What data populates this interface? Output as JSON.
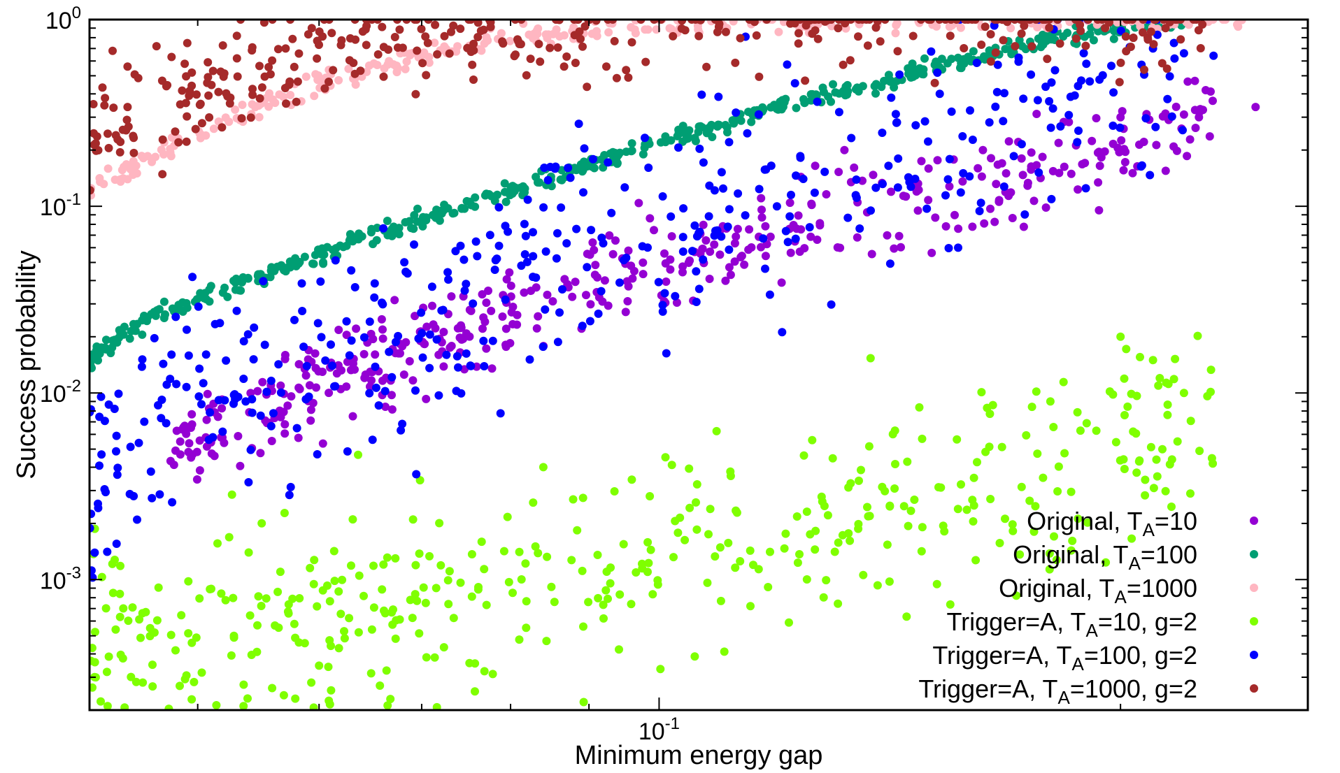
{
  "chart_data": {
    "type": "scatter",
    "title": "",
    "xlabel": "Minimum energy gap",
    "ylabel": "Success probability",
    "xscale": "log",
    "yscale": "log",
    "xlim": [
      0.0425,
      0.265
    ],
    "ylim": [
      0.0002,
      1.0
    ],
    "grid": false,
    "legend_position": "bottom-right",
    "x_ticks": [
      {
        "base": "10",
        "exp": "-1"
      }
    ],
    "y_ticks": [
      {
        "base": "10",
        "exp": "0"
      },
      {
        "base": "10",
        "exp": "-1"
      },
      {
        "base": "10",
        "exp": "-2"
      },
      {
        "base": "10",
        "exp": "-3"
      }
    ],
    "series": [
      {
        "name": "Original, T_A=10",
        "label_main": "Original, T",
        "label_sub": "A",
        "label_rest": "=10",
        "color": "#9400d3",
        "trend": [
          [
            0.048,
            0.0045
          ],
          [
            0.055,
            0.008
          ],
          [
            0.065,
            0.015
          ],
          [
            0.08,
            0.028
          ],
          [
            0.1,
            0.05
          ],
          [
            0.12,
            0.075
          ],
          [
            0.15,
            0.11
          ],
          [
            0.18,
            0.16
          ],
          [
            0.21,
            0.24
          ],
          [
            0.23,
            0.32
          ]
        ],
        "scatter_decades": 0.18,
        "count": 450,
        "points": [
          [
            0.2,
            0.3
          ],
          [
            0.215,
            0.29
          ],
          [
            0.22,
            0.31
          ],
          [
            0.225,
            0.3
          ],
          [
            0.245,
            0.34
          ]
        ]
      },
      {
        "name": "Original, T_A=100",
        "label_main": "Original, T",
        "label_sub": "A",
        "label_rest": "=100",
        "color": "#009e73",
        "trend": [
          [
            0.0425,
            0.015
          ],
          [
            0.046,
            0.025
          ],
          [
            0.052,
            0.035
          ],
          [
            0.06,
            0.055
          ],
          [
            0.07,
            0.085
          ],
          [
            0.08,
            0.12
          ],
          [
            0.1,
            0.22
          ],
          [
            0.12,
            0.34
          ],
          [
            0.15,
            0.55
          ],
          [
            0.18,
            0.8
          ],
          [
            0.205,
            0.95
          ],
          [
            0.22,
            0.99
          ]
        ],
        "scatter_decades": 0.035,
        "count": 500,
        "points": [
          [
            0.0425,
            0.015
          ],
          [
            0.0435,
            0.0175
          ],
          [
            0.046,
            0.0205
          ]
        ]
      },
      {
        "name": "Original, T_A=1000",
        "label_main": "Original, T",
        "label_sub": "A",
        "label_rest": "=1000",
        "color": "#ffb6c1",
        "trend": [
          [
            0.0425,
            0.12
          ],
          [
            0.046,
            0.17
          ],
          [
            0.052,
            0.28
          ],
          [
            0.06,
            0.45
          ],
          [
            0.07,
            0.65
          ],
          [
            0.08,
            0.8
          ],
          [
            0.1,
            0.93
          ],
          [
            0.15,
            0.99
          ],
          [
            0.24,
            1.0
          ]
        ],
        "scatter_decades": 0.04,
        "count": 300,
        "points": [
          [
            0.24,
            0.995
          ]
        ]
      },
      {
        "name": "Trigger=A, T_A=10, g=2",
        "label_main": "Trigger=A, T",
        "label_sub": "A",
        "label_rest": "=10, g=2",
        "color": "#7fff00",
        "trend": [
          [
            0.0425,
            0.0004
          ],
          [
            0.06,
            0.0006
          ],
          [
            0.08,
            0.0009
          ],
          [
            0.1,
            0.0013
          ],
          [
            0.13,
            0.0022
          ],
          [
            0.16,
            0.003
          ],
          [
            0.2,
            0.005
          ],
          [
            0.23,
            0.008
          ]
        ],
        "scatter_decades": 0.42,
        "count": 450,
        "points": [
          [
            0.2,
            0.02
          ],
          [
            0.21,
            0.015
          ],
          [
            0.22,
            0.01
          ],
          [
            0.18,
            0.009
          ]
        ]
      },
      {
        "name": "Trigger=A, T_A=100, g=2",
        "label_main": "Trigger=A, T",
        "label_sub": "A",
        "label_rest": "=100, g=2",
        "color": "#0000ff",
        "trend": [
          [
            0.0425,
            0.004
          ],
          [
            0.05,
            0.009
          ],
          [
            0.06,
            0.015
          ],
          [
            0.07,
            0.025
          ],
          [
            0.08,
            0.04
          ],
          [
            0.1,
            0.08
          ],
          [
            0.12,
            0.13
          ],
          [
            0.15,
            0.22
          ],
          [
            0.18,
            0.35
          ],
          [
            0.22,
            0.55
          ]
        ],
        "scatter_decades": 0.45,
        "count": 420,
        "points": [
          [
            0.23,
            0.64
          ],
          [
            0.22,
            0.66
          ],
          [
            0.19,
            0.58
          ],
          [
            0.21,
            0.7
          ]
        ]
      },
      {
        "name": "Trigger=A, T_A=1000, g=2",
        "label_main": "Trigger=A, T",
        "label_sub": "A",
        "label_rest": "=1000, g=2",
        "color": "#a52a2a",
        "trend": [
          [
            0.0425,
            0.25
          ],
          [
            0.046,
            0.3
          ],
          [
            0.05,
            0.4
          ],
          [
            0.055,
            0.55
          ],
          [
            0.06,
            0.7
          ],
          [
            0.07,
            0.85
          ],
          [
            0.08,
            0.92
          ],
          [
            0.1,
            0.97
          ],
          [
            0.15,
            0.99
          ],
          [
            0.23,
            0.995
          ]
        ],
        "scatter_decades": 0.22,
        "count": 380,
        "points": [
          [
            0.044,
            0.68
          ],
          [
            0.045,
            0.56
          ],
          [
            0.047,
            0.72
          ],
          [
            0.0435,
            0.38
          ]
        ]
      }
    ]
  }
}
